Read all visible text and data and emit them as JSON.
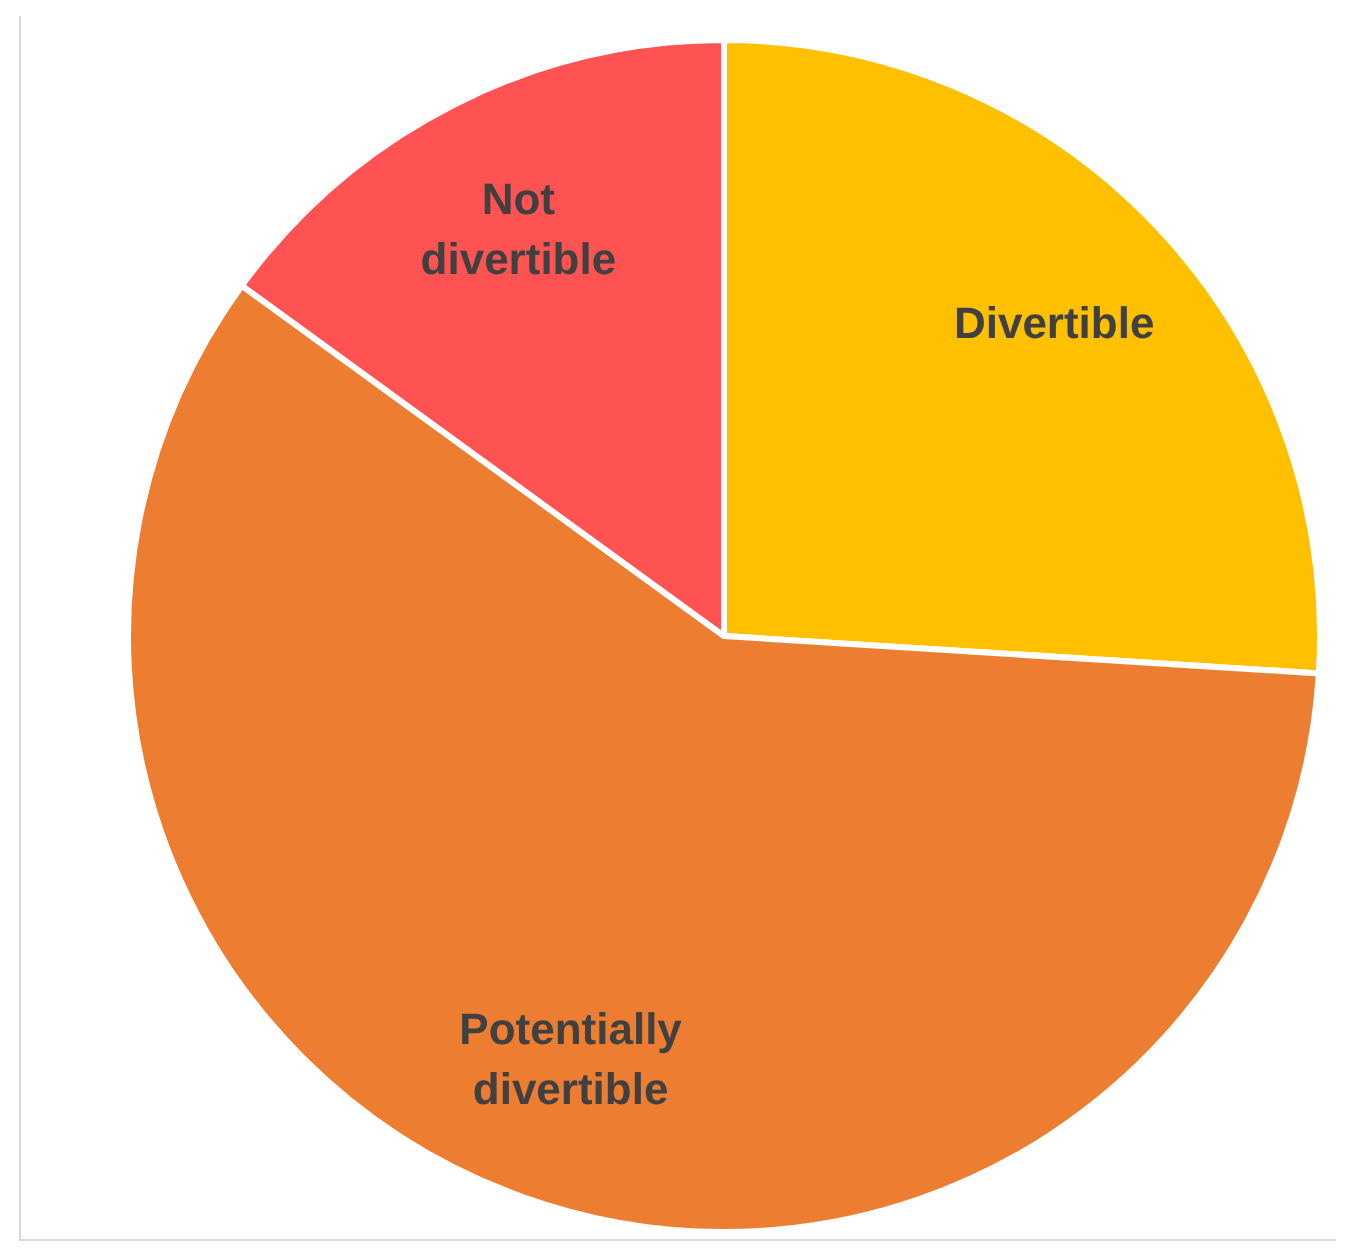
{
  "chart_data": {
    "type": "pie",
    "categories": [
      "Divertible",
      "Potentially divertible",
      "Not divertible"
    ],
    "values": [
      26,
      59,
      15
    ],
    "colors": [
      "#ffc000",
      "#ed7d31",
      "#ff5252"
    ]
  }
}
